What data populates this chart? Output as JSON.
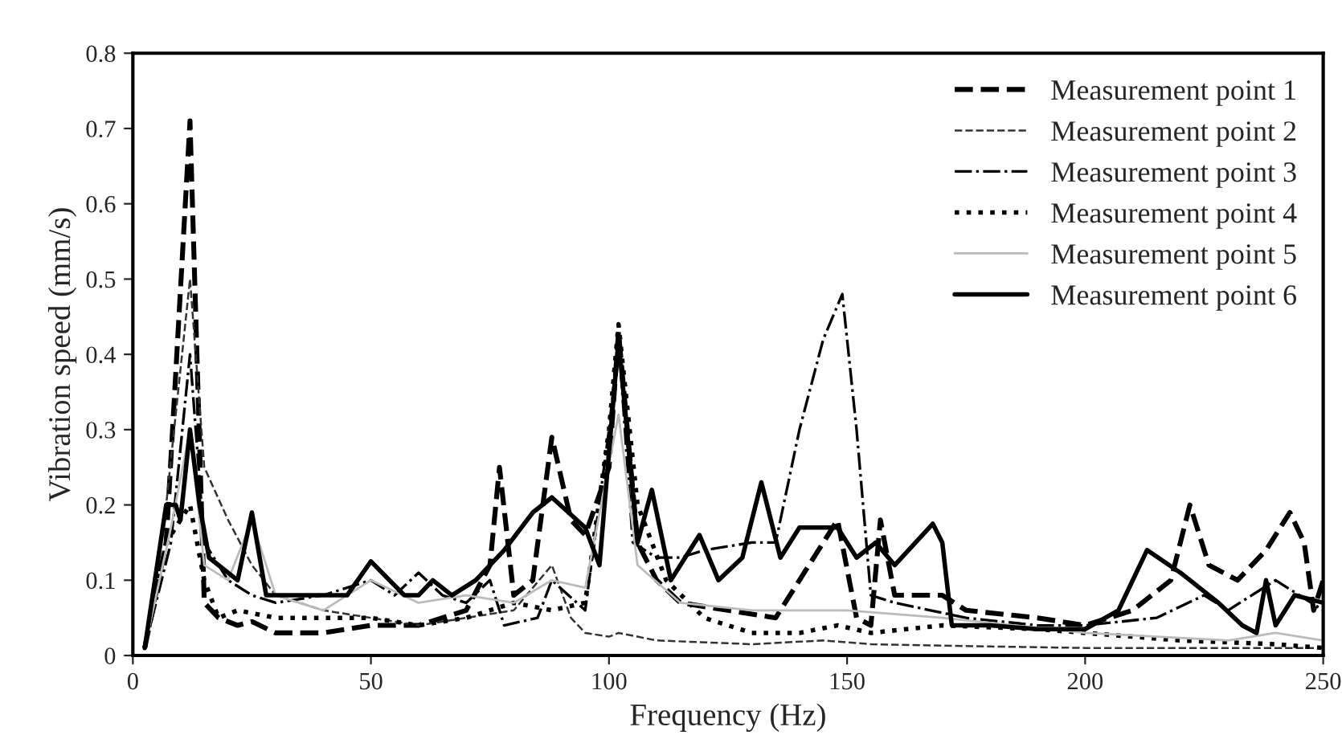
{
  "chart_data": {
    "type": "line",
    "xlabel": "Frequency (Hz)",
    "ylabel": "Vibration speed (mm/s)",
    "xlim": [
      0,
      250
    ],
    "xticks": [
      0,
      50,
      100,
      150,
      200,
      250
    ],
    "ylim": [
      0,
      0.8
    ],
    "yticks": [
      0,
      0.1,
      0.2,
      0.3,
      0.4,
      0.5,
      0.6,
      0.7,
      0.8
    ],
    "grid": false,
    "legend": "top right",
    "marker": "none",
    "series": [
      {
        "name": "Measurement point 1",
        "color": "#000000",
        "line_style": "dashed",
        "x": [
          2.5,
          7,
          12,
          15,
          18,
          22,
          25,
          30,
          40,
          50,
          60,
          70,
          75,
          77,
          80,
          84,
          88,
          92,
          95,
          100,
          102,
          106,
          110,
          115,
          125,
          135,
          140,
          148,
          152,
          155,
          157,
          160,
          170,
          175,
          190,
          200,
          210,
          218,
          222,
          226,
          232,
          238,
          243,
          246,
          248,
          250
        ],
        "values": [
          0.01,
          0.15,
          0.71,
          0.07,
          0.05,
          0.04,
          0.045,
          0.03,
          0.03,
          0.04,
          0.04,
          0.06,
          0.12,
          0.25,
          0.08,
          0.1,
          0.29,
          0.18,
          0.16,
          0.25,
          0.43,
          0.15,
          0.1,
          0.07,
          0.06,
          0.05,
          0.1,
          0.18,
          0.05,
          0.04,
          0.18,
          0.08,
          0.08,
          0.06,
          0.05,
          0.04,
          0.06,
          0.1,
          0.2,
          0.12,
          0.1,
          0.14,
          0.19,
          0.15,
          0.06,
          0.1
        ]
      },
      {
        "name": "Measurement point 2",
        "color": "#333333",
        "line_style": "dashed",
        "x": [
          2.5,
          7,
          12,
          15,
          20,
          25,
          30,
          40,
          50,
          60,
          70,
          80,
          88,
          92,
          95,
          100,
          102,
          110,
          130,
          145,
          155,
          180,
          200,
          250
        ],
        "values": [
          0.01,
          0.2,
          0.5,
          0.25,
          0.18,
          0.12,
          0.08,
          0.06,
          0.05,
          0.04,
          0.05,
          0.06,
          0.12,
          0.05,
          0.03,
          0.025,
          0.03,
          0.02,
          0.015,
          0.02,
          0.015,
          0.012,
          0.01,
          0.01
        ]
      },
      {
        "name": "Measurement point 3",
        "color": "#000000",
        "line_style": "dashdot",
        "x": [
          2.5,
          8,
          12,
          15,
          20,
          25,
          30,
          40,
          50,
          55,
          60,
          65,
          70,
          75,
          78,
          85,
          88,
          95,
          100,
          102,
          105,
          110,
          115,
          120,
          130,
          135,
          140,
          145,
          149,
          152,
          155,
          160,
          175,
          190,
          200,
          215,
          225,
          230,
          240,
          250
        ],
        "values": [
          0.01,
          0.15,
          0.4,
          0.15,
          0.1,
          0.08,
          0.07,
          0.08,
          0.1,
          0.08,
          0.11,
          0.08,
          0.07,
          0.1,
          0.04,
          0.05,
          0.1,
          0.06,
          0.3,
          0.42,
          0.15,
          0.13,
          0.13,
          0.14,
          0.15,
          0.15,
          0.3,
          0.42,
          0.48,
          0.3,
          0.08,
          0.07,
          0.05,
          0.04,
          0.04,
          0.05,
          0.08,
          0.06,
          0.1,
          0.06
        ]
      },
      {
        "name": "Measurement point 4",
        "color": "#000000",
        "line_style": "dotted",
        "x": [
          2.5,
          7,
          12,
          15,
          18,
          22,
          30,
          40,
          50,
          60,
          70,
          80,
          88,
          95,
          100,
          102,
          106,
          112,
          120,
          130,
          140,
          148,
          155,
          170,
          190,
          200,
          220,
          240,
          250
        ],
        "values": [
          0.01,
          0.15,
          0.2,
          0.1,
          0.05,
          0.06,
          0.05,
          0.05,
          0.05,
          0.04,
          0.05,
          0.07,
          0.06,
          0.07,
          0.3,
          0.44,
          0.2,
          0.1,
          0.05,
          0.03,
          0.03,
          0.04,
          0.03,
          0.04,
          0.035,
          0.03,
          0.02,
          0.015,
          0.01
        ]
      },
      {
        "name": "Measurement point 5",
        "color": "#bbbbbb",
        "line_style": "solid",
        "x": [
          2.5,
          8,
          12,
          15,
          20,
          25,
          30,
          40,
          50,
          60,
          70,
          80,
          88,
          95,
          102,
          106,
          115,
          130,
          150,
          170,
          200,
          230,
          240,
          250
        ],
        "values": [
          0.01,
          0.17,
          0.3,
          0.12,
          0.1,
          0.18,
          0.08,
          0.06,
          0.1,
          0.07,
          0.08,
          0.07,
          0.1,
          0.09,
          0.32,
          0.12,
          0.07,
          0.06,
          0.06,
          0.05,
          0.03,
          0.02,
          0.03,
          0.02
        ]
      },
      {
        "name": "Measurement point 6",
        "color": "#000000",
        "line_style": "solid",
        "x": [
          2.5,
          7,
          9,
          10,
          12,
          14,
          16,
          22,
          25,
          28,
          35,
          45,
          50,
          57,
          60,
          63,
          67,
          72,
          78,
          84,
          88,
          95,
          98,
          102,
          106,
          109,
          113,
          119,
          123,
          128,
          132,
          136,
          140,
          148,
          152,
          156,
          160,
          168,
          170,
          172,
          180,
          190,
          200,
          207,
          213,
          220,
          228,
          233,
          236,
          238,
          240,
          244,
          250
        ],
        "values": [
          0.01,
          0.2,
          0.2,
          0.18,
          0.3,
          0.2,
          0.13,
          0.1,
          0.19,
          0.08,
          0.08,
          0.08,
          0.125,
          0.08,
          0.08,
          0.1,
          0.08,
          0.1,
          0.14,
          0.19,
          0.21,
          0.17,
          0.12,
          0.42,
          0.15,
          0.22,
          0.1,
          0.16,
          0.1,
          0.13,
          0.23,
          0.13,
          0.17,
          0.17,
          0.13,
          0.15,
          0.12,
          0.175,
          0.15,
          0.04,
          0.04,
          0.035,
          0.035,
          0.06,
          0.14,
          0.11,
          0.07,
          0.04,
          0.03,
          0.1,
          0.04,
          0.08,
          0.07
        ]
      }
    ]
  }
}
